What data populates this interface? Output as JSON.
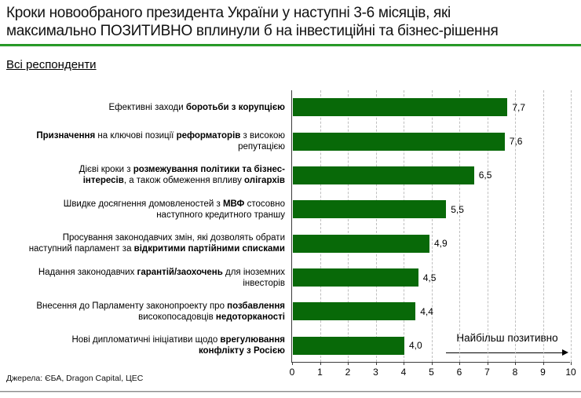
{
  "header": {
    "title_lines": [
      "Кроки новообраного президента України у наступні 3-6 місяців, які",
      "максимально ПОЗИТИВНО вплинули б на інвестиційні та бізнес-рішення"
    ],
    "title": "Кроки новообраного президента України у наступні 3-6 місяців, які максимально ПОЗИТИВНО вплинули б на інвестиційні та бізнес-рішення",
    "subtitle": "Всі респонденти"
  },
  "footer": {
    "source": "Джерела: ЄБА, Dragon Capital, ЦЕС"
  },
  "colors": {
    "bar": "#086908",
    "title_rule_green": "#1ca31c",
    "gridline": "#bfbfbf",
    "axis": "#3c3c3c",
    "footer_rule": "#8c8c8c"
  },
  "chart_data": {
    "type": "bar",
    "orientation": "horizontal",
    "title": "",
    "xlabel": "",
    "ylabel": "",
    "xlim": [
      0,
      10
    ],
    "x_ticks": [
      0,
      1,
      2,
      3,
      4,
      5,
      6,
      7,
      8,
      9,
      10
    ],
    "grid": "vertical-dashed",
    "legend": "none",
    "bar_color": "#086908",
    "annotation": "Найбільш позитивно",
    "values": [
      7.7,
      7.6,
      6.5,
      5.5,
      4.9,
      4.5,
      4.4,
      4.0
    ],
    "value_labels": [
      "7,7",
      "7,6",
      "6,5",
      "5,5",
      "4,9",
      "4,5",
      "4,4",
      "4,0"
    ],
    "categories": [
      "Ефективні заходи боротьби з корупцією",
      "Призначення на ключові позиції реформаторів з високою репутацією",
      "Дієві кроки з розмежування політики та бізнес-інтересів, а також обмеження впливу олігархів",
      "Швидке досягнення домовленостей з МВФ стосовно наступного кредитного траншу",
      "Просування законодавчих змін, які дозволять обрати наступний парламент за відкритими партійними списками",
      "Надання законодавчих гарантій/заохочень для іноземних інвесторів",
      "Внесення до Парламенту законопроекту про позбавлення високопосадовців недоторканості",
      "Нові дипломатичні ініціативи щодо врегулювання конфлікту з Росією"
    ],
    "categories_rich": [
      [
        [
          {
            "t": "Ефективні заходи ",
            "b": false
          },
          {
            "t": "боротьби з корупцією",
            "b": true
          }
        ]
      ],
      [
        [
          {
            "t": "Призначення",
            "b": true
          },
          {
            "t": " на ключові позиції ",
            "b": false
          },
          {
            "t": "реформаторів",
            "b": true
          },
          {
            "t": " з високою",
            "b": false
          }
        ],
        [
          {
            "t": "репутацією",
            "b": false
          }
        ]
      ],
      [
        [
          {
            "t": "Дієві кроки з ",
            "b": false
          },
          {
            "t": "розмежування політики та бізнес-",
            "b": true
          }
        ],
        [
          {
            "t": "інтересів",
            "b": true
          },
          {
            "t": ", а також обмеження впливу ",
            "b": false
          },
          {
            "t": "олігархів",
            "b": true
          }
        ]
      ],
      [
        [
          {
            "t": "Швидке досягнення домовленостей з ",
            "b": false
          },
          {
            "t": "МВФ",
            "b": true
          },
          {
            "t": " стосовно",
            "b": false
          }
        ],
        [
          {
            "t": "наступного кредитного траншу",
            "b": false
          }
        ]
      ],
      [
        [
          {
            "t": "Просування законодавчих змін, які дозволять обрати",
            "b": false
          }
        ],
        [
          {
            "t": "наступний парламент за ",
            "b": false
          },
          {
            "t": "відкритими партійними списками",
            "b": true
          }
        ]
      ],
      [
        [
          {
            "t": "Надання законодавчих ",
            "b": false
          },
          {
            "t": "гарантій/заохочень",
            "b": true
          },
          {
            "t": " для іноземних",
            "b": false
          }
        ],
        [
          {
            "t": "інвесторів",
            "b": false
          }
        ]
      ],
      [
        [
          {
            "t": "Внесення до Парламенту законопроекту про ",
            "b": false
          },
          {
            "t": "позбавлення",
            "b": true
          }
        ],
        [
          {
            "t": "високопосадовців ",
            "b": false
          },
          {
            "t": "недоторканості",
            "b": true
          }
        ]
      ],
      [
        [
          {
            "t": "Нові дипломатичні ініціативи щодо ",
            "b": false
          },
          {
            "t": "врегулювання",
            "b": true
          }
        ],
        [
          {
            "t": "конфлікту з Росією",
            "b": true
          }
        ]
      ]
    ]
  }
}
